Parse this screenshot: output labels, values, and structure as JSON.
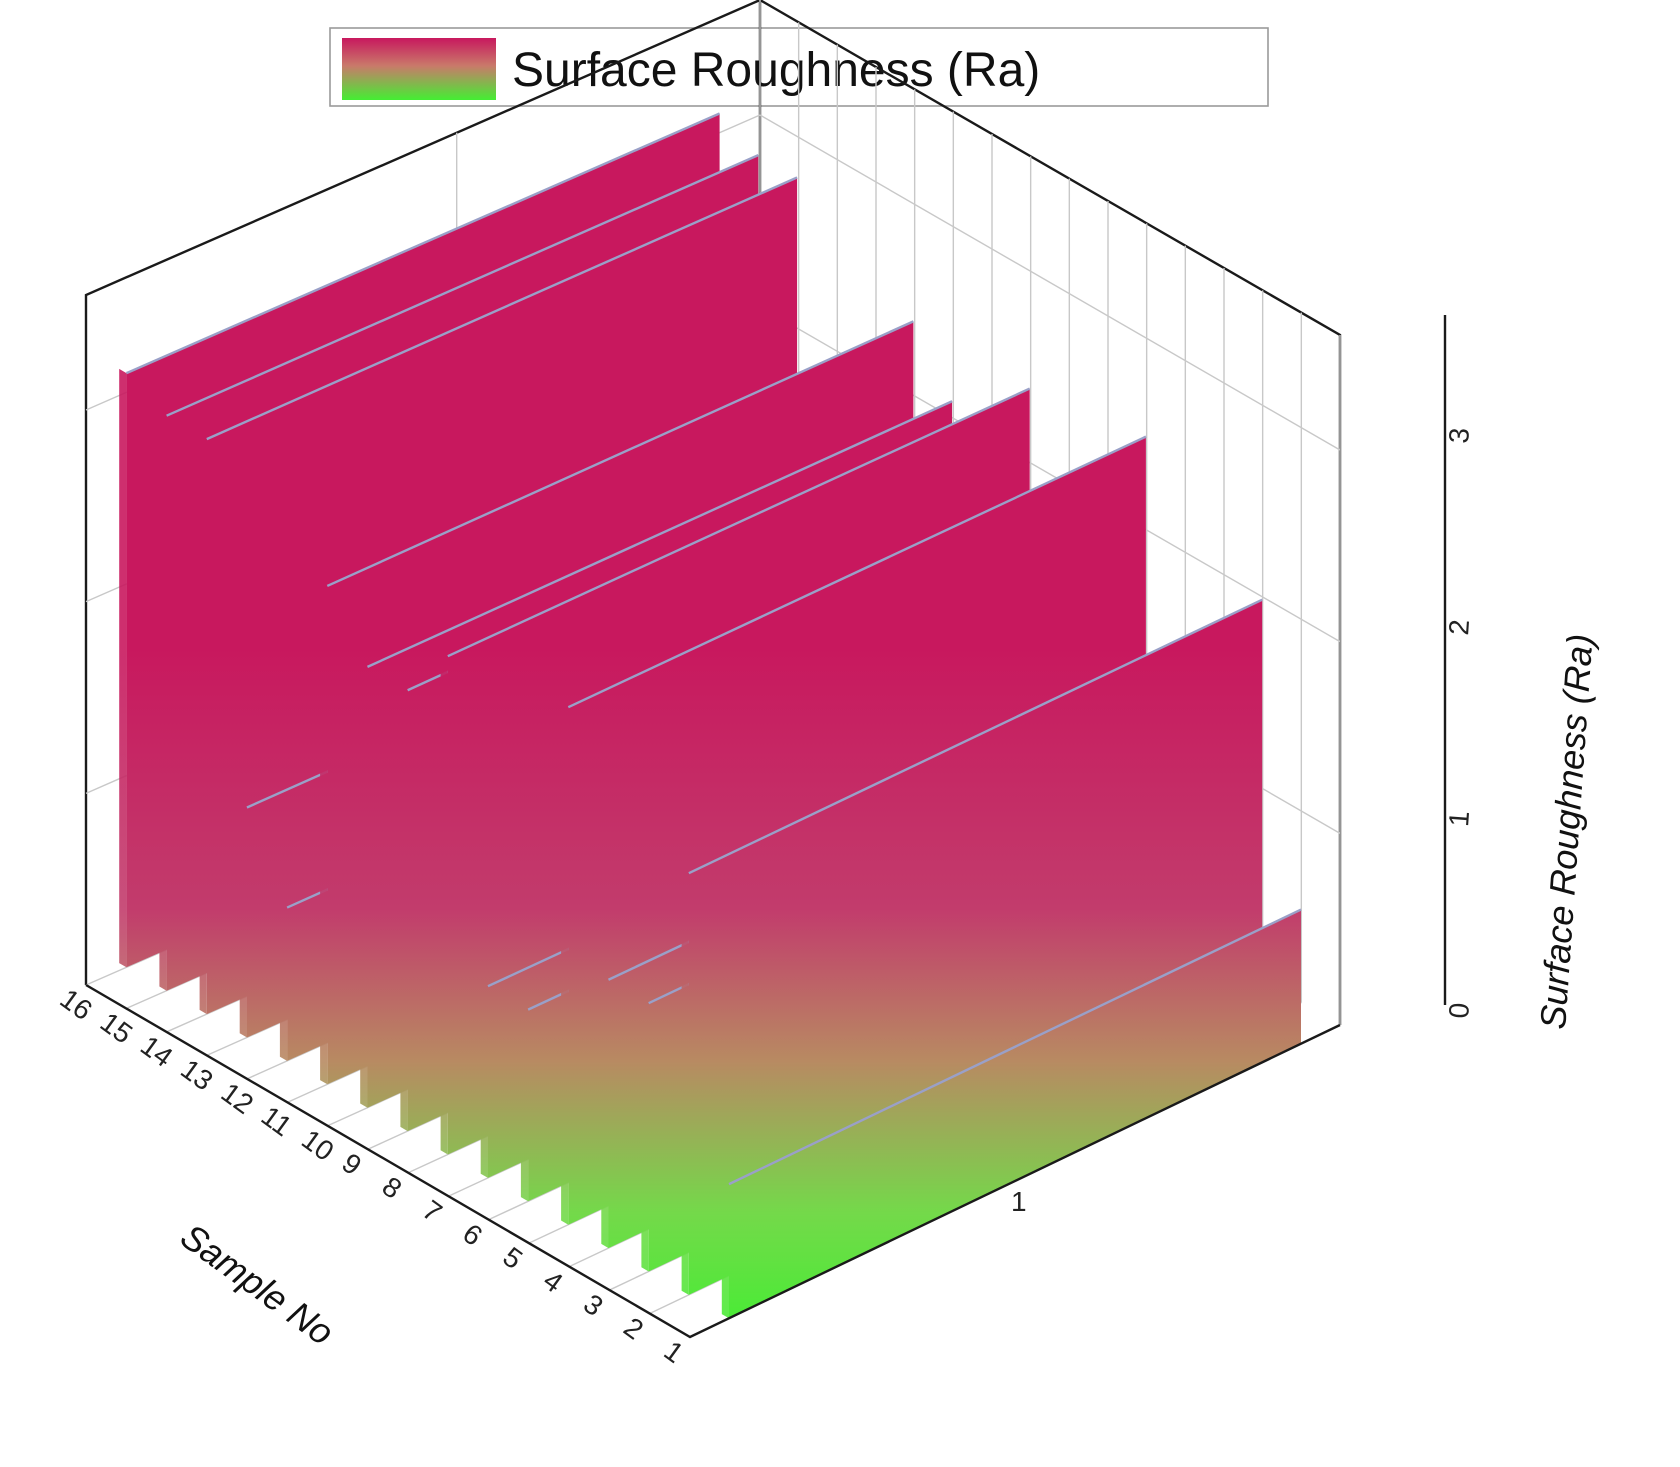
{
  "chart_data": {
    "type": "3d-wall",
    "title": "",
    "legend": {
      "label": "Surface Roughness (Ra)",
      "position": "top-center"
    },
    "xlabel": "Sample No",
    "ylabel": "",
    "zlabel": "Surface Roughness (Ra)",
    "x_ticks": [
      "1",
      "2",
      "3",
      "4",
      "5",
      "6",
      "7",
      "8",
      "9",
      "10",
      "11",
      "12",
      "13",
      "14",
      "15",
      "16"
    ],
    "y_ticks": [
      "1"
    ],
    "z_ticks": [
      "0",
      "1",
      "2",
      "3"
    ],
    "zlim": [
      0,
      3.6
    ],
    "grid": true,
    "gradient": {
      "low_color": "#44ee33",
      "high_color": "#c8185e",
      "top_edge_color": "#9aa0c8"
    },
    "series": [
      {
        "categories": [
          "1",
          "2",
          "3",
          "4",
          "5",
          "6",
          "7",
          "8",
          "9",
          "10",
          "11",
          "12",
          "13",
          "14",
          "15",
          "16"
        ],
        "values": [
          0.7,
          2.2,
          1.4,
          1.4,
          2.7,
          1.0,
          1.0,
          2.6,
          2.3,
          2.3,
          2.6,
          0.8,
          1.2,
          3.0,
          3.0,
          3.1
        ]
      }
    ]
  }
}
